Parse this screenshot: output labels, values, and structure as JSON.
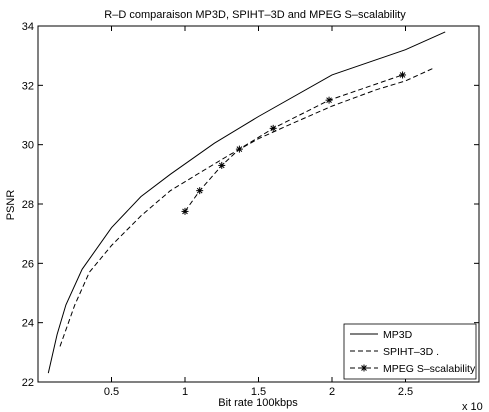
{
  "chart_data": {
    "type": "line",
    "title": "R–D comparaison MP3D, SPIHT–3D and MPEG S–scalability",
    "xlabel": "Bit rate 100kbps",
    "ylabel": "PSNR",
    "x_multiplier_label": "x 10",
    "xlim": [
      0,
      3
    ],
    "ylim": [
      22,
      34
    ],
    "x_ticks": [
      0.5,
      1,
      1.5,
      2,
      2.5
    ],
    "x_tick_labels": [
      "0.5",
      "1",
      "1.5",
      "2",
      "2.5"
    ],
    "y_ticks": [
      22,
      24,
      26,
      28,
      30,
      32,
      34
    ],
    "y_tick_labels": [
      "22",
      "24",
      "26",
      "28",
      "30",
      "32",
      "34"
    ],
    "grid": false,
    "legend_position": "bottom-right",
    "series": [
      {
        "name": "MP3D",
        "style": "solid",
        "marker": "none",
        "x": [
          0.07,
          0.13,
          0.19,
          0.3,
          0.5,
          0.7,
          0.9,
          1.2,
          1.5,
          2.0,
          2.5,
          2.77
        ],
        "y": [
          22.3,
          23.6,
          24.6,
          25.8,
          27.2,
          28.25,
          29.0,
          30.05,
          30.95,
          32.35,
          33.2,
          33.8
        ]
      },
      {
        "name": "SPIHT–3D .",
        "style": "dashed",
        "marker": "none",
        "x": [
          0.15,
          0.25,
          0.35,
          0.5,
          0.7,
          0.9,
          1.1,
          1.3,
          1.5,
          1.7,
          2.0,
          2.3,
          2.5,
          2.7
        ],
        "y": [
          23.2,
          24.6,
          25.7,
          26.6,
          27.6,
          28.45,
          29.05,
          29.65,
          30.2,
          30.65,
          31.3,
          31.85,
          32.15,
          32.6
        ]
      },
      {
        "name": "MPEG S–scalability",
        "style": "dashed",
        "marker": "asterisk",
        "x": [
          1.0,
          1.1,
          1.25,
          1.37,
          1.6,
          1.98,
          2.48
        ],
        "y": [
          27.75,
          28.45,
          29.3,
          29.85,
          30.55,
          31.5,
          32.35
        ]
      }
    ]
  }
}
